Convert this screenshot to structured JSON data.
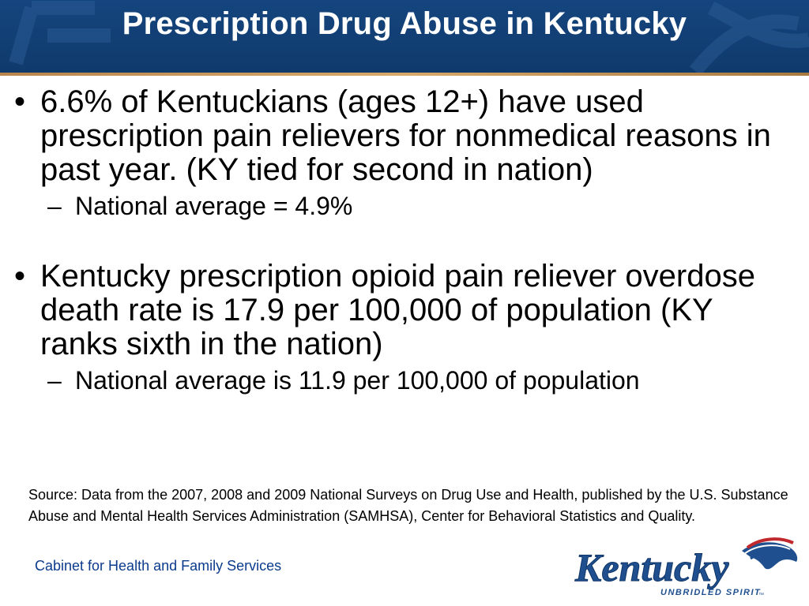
{
  "slide": {
    "title": "Prescription Drug Abuse in Kentucky",
    "bullets": [
      {
        "text": "6.6% of Kentuckians (ages 12+) have used prescription pain relievers for nonmedical reasons in past year.  (KY tied for second in nation)",
        "sub": "National average = 4.9%"
      },
      {
        "text": "Kentucky prescription opioid pain reliever overdose death rate is 17.9 per 100,000 of population (KY ranks sixth in the nation)",
        "sub": "National average is 11.9 per 100,000 of population"
      }
    ],
    "bullet_symbol": "•",
    "sub_symbol": "–",
    "source": "Source: Data from the 2007, 2008 and 2009 National Surveys on Drug Use and Health, published by the U.S. Substance Abuse and Mental Health Services Administration (SAMHSA), Center for Behavioral Statistics and Quality.",
    "footer": "Cabinet for Health and Family Services",
    "logo": {
      "wordmark": "Kentucky",
      "tagline": "UNBRIDLED SPIRIT",
      "trademark": "™"
    }
  },
  "colors": {
    "title_bar": "#15457e",
    "title_text": "#ffffff",
    "accent_rule": "#c9975b",
    "footer_text": "#0b3b8c",
    "logo_blue": "#1f4f8f",
    "logo_red": "#c0282d"
  }
}
